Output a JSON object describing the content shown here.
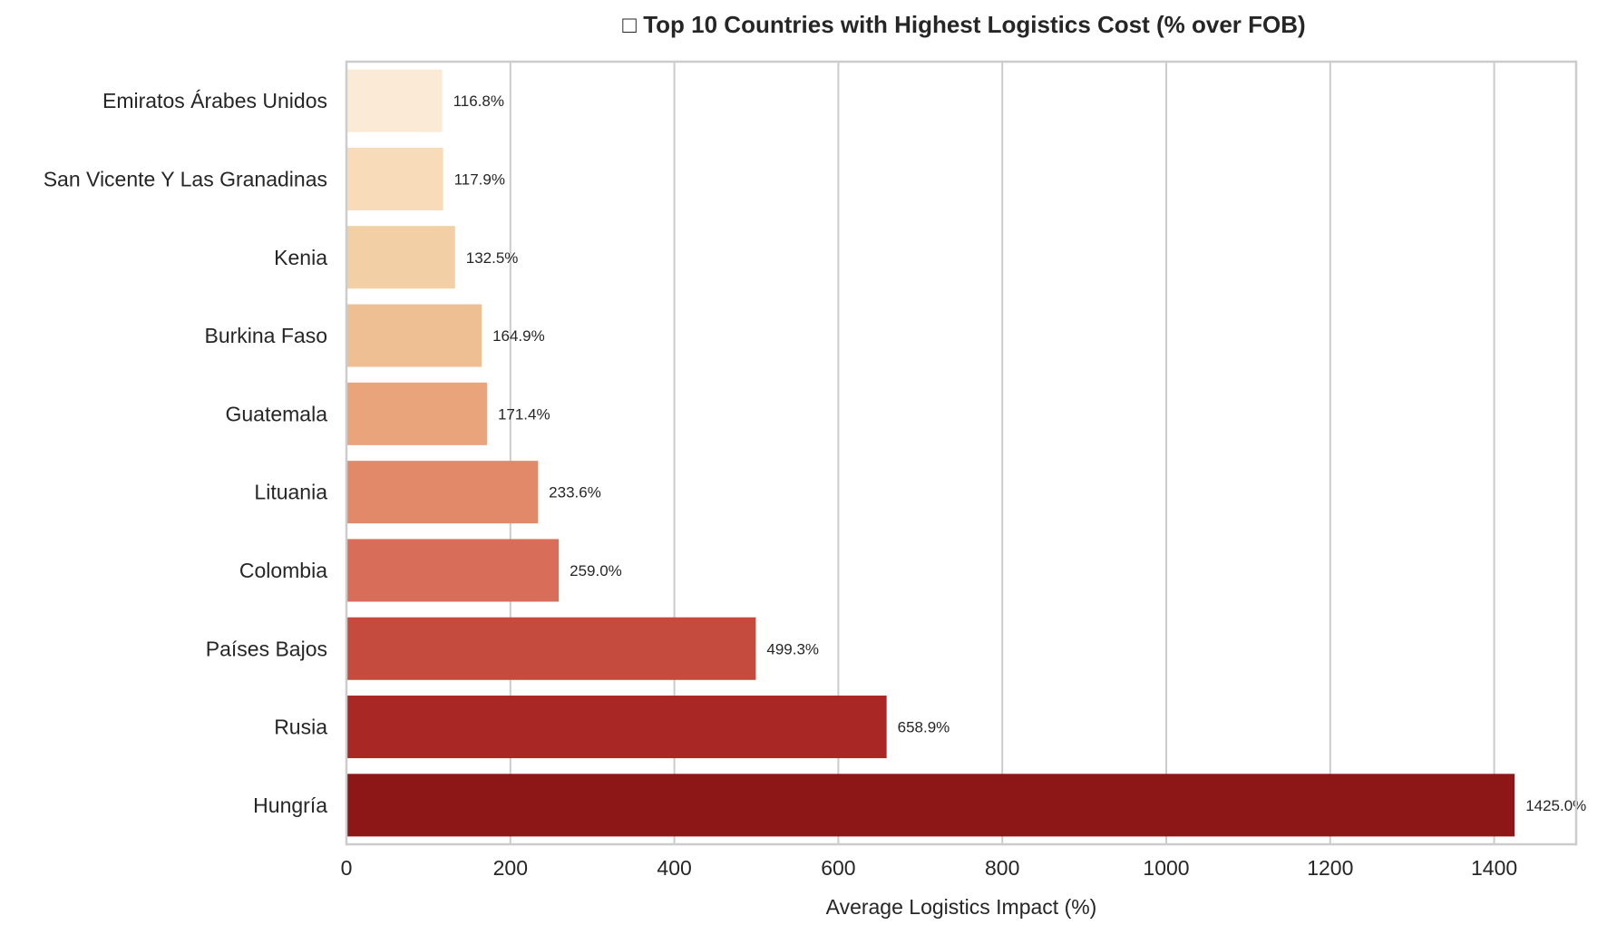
{
  "chart_data": {
    "type": "bar",
    "orientation": "horizontal",
    "title": "□ Top 10 Countries with Highest Logistics Cost (% over FOB)",
    "xlabel": "Average Logistics Impact (%)",
    "ylabel": "",
    "xlim": [
      0,
      1500
    ],
    "xticks": [
      0,
      200,
      400,
      600,
      800,
      1000,
      1200,
      1400
    ],
    "grid": "vertical",
    "categories": [
      "Emiratos Árabes Unidos",
      "San Vicente Y Las Granadinas",
      "Kenia",
      "Burkina Faso",
      "Guatemala",
      "Lituania",
      "Colombia",
      "Países Bajos",
      "Rusia",
      "Hungría"
    ],
    "values": [
      116.8,
      117.9,
      132.5,
      164.9,
      171.4,
      233.6,
      259.0,
      499.3,
      658.9,
      1425.0
    ],
    "data_labels": [
      "116.8%",
      "117.9%",
      "132.5%",
      "164.9%",
      "171.4%",
      "233.6%",
      "259.0%",
      "499.3%",
      "658.9%",
      "1425.0%"
    ],
    "colors": [
      "#fbead6",
      "#f8dcb9",
      "#f2cfa4",
      "#eebf92",
      "#eaa47b",
      "#e2896a",
      "#d86e5a",
      "#c54b3e",
      "#a92825",
      "#8d1616"
    ]
  }
}
